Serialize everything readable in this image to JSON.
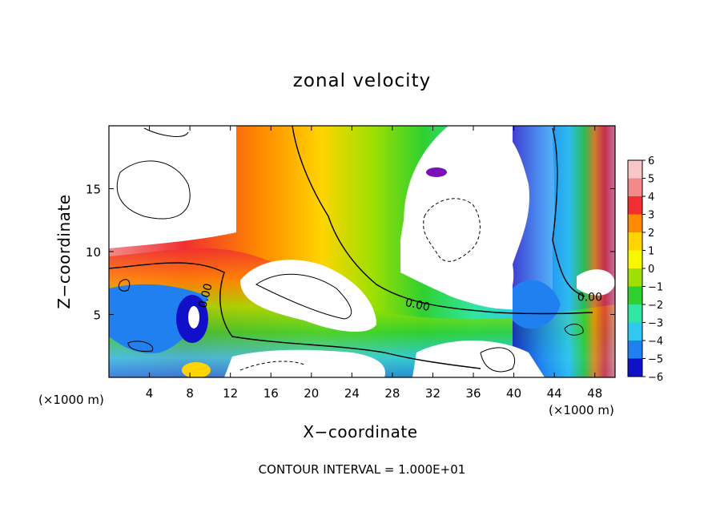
{
  "chart_data": {
    "type": "heatmap",
    "title": "zonal velocity",
    "xlabel": "X−coordinate",
    "ylabel": "Z−coordinate",
    "x_unit_left": "(×1000 m)",
    "x_unit_right": "(×1000 m)",
    "footnote": "CONTOUR INTERVAL = 1.000E+01",
    "xlim": [
      0,
      50
    ],
    "ylim": [
      0,
      20
    ],
    "xticks": [
      "4",
      "8",
      "12",
      "16",
      "20",
      "24",
      "28",
      "32",
      "36",
      "40",
      "44",
      "48"
    ],
    "xtick_values": [
      4,
      8,
      12,
      16,
      20,
      24,
      28,
      32,
      36,
      40,
      44,
      48
    ],
    "yticks": [
      "5",
      "10",
      "15"
    ],
    "ytick_values": [
      5,
      10,
      15
    ],
    "colorbar": {
      "levels": [
        6,
        5,
        4,
        3,
        2,
        1,
        0,
        -1,
        -2,
        -3,
        -4,
        -5,
        -6
      ],
      "labels": [
        "6",
        "5",
        "4",
        "3",
        "2",
        "1",
        "0",
        "−1",
        "−2",
        "−3",
        "−4",
        "−5",
        "−6"
      ],
      "colors": [
        "#f7c6c6",
        "#f28a8a",
        "#f03030",
        "#ff8a00",
        "#ffd400",
        "#f7f700",
        "#9fe000",
        "#30d030",
        "#30e6a0",
        "#30c8f0",
        "#2080f0",
        "#1010c8",
        "#7a10b8"
      ]
    },
    "contour_labels": [
      {
        "text": "0.00",
        "x": 9.5,
        "y": 6.5,
        "rotate": -75
      },
      {
        "text": "0.00",
        "x": 30.5,
        "y": 5.8,
        "rotate": 12
      },
      {
        "text": "0.00",
        "x": 47.5,
        "y": 6.4,
        "rotate": 0
      }
    ],
    "grid": false,
    "legend_placement": "right"
  }
}
